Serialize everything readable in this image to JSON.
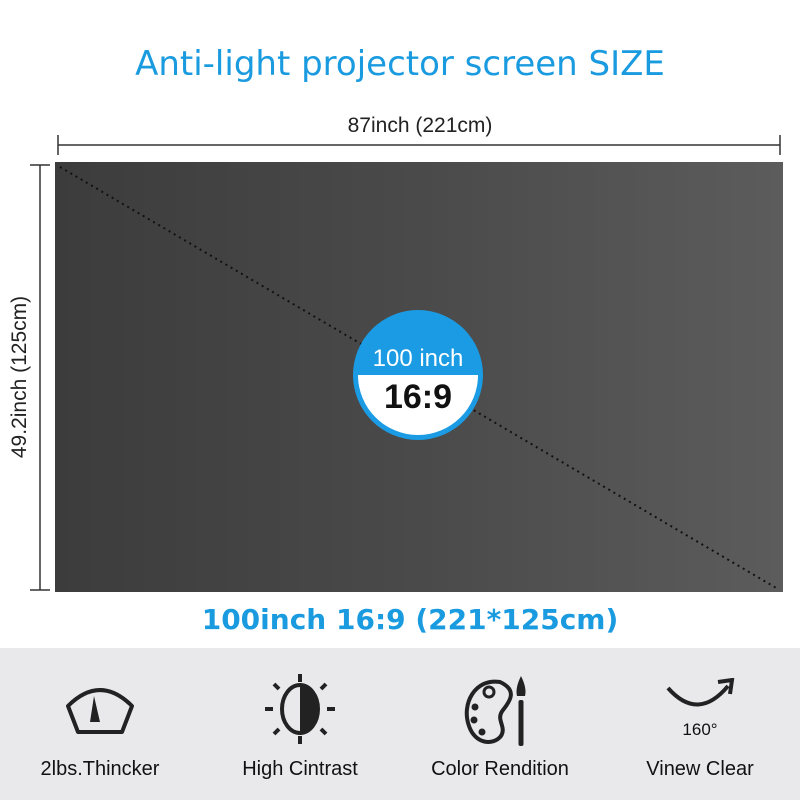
{
  "title": "Anti-light projector screen SIZE",
  "width_label": "87inch (221cm)",
  "height_label": "49.2inch (125cm)",
  "badge": {
    "size": "100 inch",
    "ratio": "16:9",
    "color": "#1b9be3"
  },
  "size_caption": "100inch 16:9 (221*125cm)",
  "features": [
    {
      "icon": "gauge-icon",
      "label": "2lbs.Thincker"
    },
    {
      "icon": "contrast-sun-icon",
      "label": "High Cintrast"
    },
    {
      "icon": "palette-icon",
      "label": "Color Rendition"
    },
    {
      "icon": "view-angle-arrow-icon",
      "label": "Vinew Clear",
      "angle": "160°"
    }
  ]
}
